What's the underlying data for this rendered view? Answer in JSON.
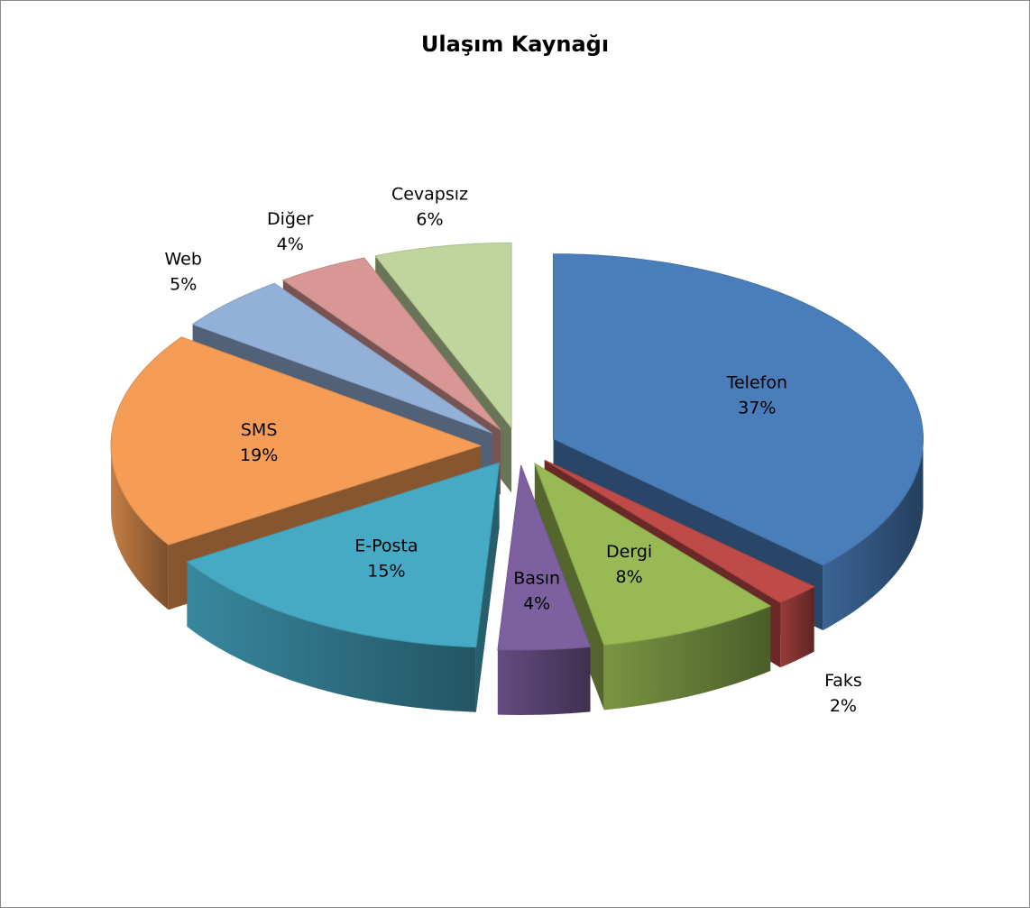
{
  "chart_data": {
    "type": "pie3d",
    "title": "Ulaşım Kaynağı",
    "categories": [
      "Telefon",
      "Faks",
      "Dergi",
      "Basın",
      "E-Posta",
      "SMS",
      "Web",
      "Diğer",
      "Cevapsız"
    ],
    "values": [
      37,
      2,
      8,
      4,
      15,
      19,
      5,
      4,
      6
    ],
    "value_labels": [
      "37%",
      "2%",
      "8%",
      "4%",
      "15%",
      "19%",
      "5%",
      "4%",
      "6%"
    ],
    "colors": [
      "#4a7ebb",
      "#be4b48",
      "#98b954",
      "#7d60a0",
      "#46aac5",
      "#f59d56",
      "#93b1d8",
      "#d89795",
      "#c0d59e"
    ]
  }
}
